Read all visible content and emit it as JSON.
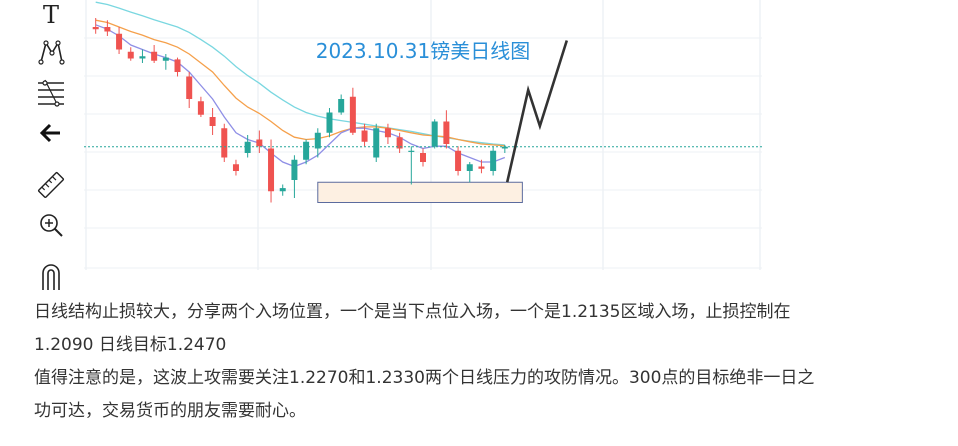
{
  "toolbar": {
    "items": [
      {
        "name": "text-tool",
        "icon": "text-icon",
        "glyph": "T"
      },
      {
        "name": "pattern-tool",
        "icon": "pattern-icon"
      },
      {
        "name": "fib-tool",
        "icon": "fib-retracement-icon"
      },
      {
        "name": "back-tool",
        "icon": "arrow-left-icon"
      },
      {
        "name": "ruler-tool",
        "icon": "ruler-icon"
      },
      {
        "name": "zoom-tool",
        "icon": "zoom-in-icon"
      },
      {
        "name": "magnet-tool",
        "icon": "magnet-icon"
      }
    ]
  },
  "chart_data": {
    "type": "candlestick",
    "title": "2023.10.31镑美日线图",
    "colors": {
      "up": "#26a69a",
      "down": "#ef5350",
      "ma_fast": "#8f8fe6",
      "ma_mid": "#f5a04b",
      "ma_slow": "#7ad7e0",
      "current_line": "#26a69a",
      "zone_fill": "#fdf0e2",
      "zone_border": "#5b6b9e",
      "projection": "#333333",
      "title": "#2a8fd8"
    },
    "candles": [
      {
        "o": 1.244,
        "h": 1.246,
        "l": 1.2425,
        "c": 1.2435
      },
      {
        "o": 1.244,
        "h": 1.2455,
        "l": 1.242,
        "c": 1.243
      },
      {
        "o": 1.2425,
        "h": 1.244,
        "l": 1.238,
        "c": 1.239
      },
      {
        "o": 1.2385,
        "h": 1.2395,
        "l": 1.2365,
        "c": 1.237
      },
      {
        "o": 1.237,
        "h": 1.239,
        "l": 1.236,
        "c": 1.2375
      },
      {
        "o": 1.2385,
        "h": 1.24,
        "l": 1.236,
        "c": 1.2365
      },
      {
        "o": 1.2365,
        "h": 1.238,
        "l": 1.2345,
        "c": 1.2372
      },
      {
        "o": 1.2368,
        "h": 1.2372,
        "l": 1.233,
        "c": 1.234
      },
      {
        "o": 1.233,
        "h": 1.234,
        "l": 1.226,
        "c": 1.228
      },
      {
        "o": 1.2275,
        "h": 1.2285,
        "l": 1.224,
        "c": 1.2245
      },
      {
        "o": 1.224,
        "h": 1.226,
        "l": 1.22,
        "c": 1.222
      },
      {
        "o": 1.2215,
        "h": 1.2225,
        "l": 1.214,
        "c": 1.215
      },
      {
        "o": 1.2135,
        "h": 1.2145,
        "l": 1.211,
        "c": 1.212
      },
      {
        "o": 1.216,
        "h": 1.22,
        "l": 1.215,
        "c": 1.2185
      },
      {
        "o": 1.219,
        "h": 1.221,
        "l": 1.216,
        "c": 1.2175
      },
      {
        "o": 1.217,
        "h": 1.219,
        "l": 1.205,
        "c": 1.2075
      },
      {
        "o": 1.2075,
        "h": 1.209,
        "l": 1.2065,
        "c": 1.2082
      },
      {
        "o": 1.21,
        "h": 1.2155,
        "l": 1.206,
        "c": 1.2145
      },
      {
        "o": 1.2145,
        "h": 1.219,
        "l": 1.2135,
        "c": 1.2185
      },
      {
        "o": 1.217,
        "h": 1.2215,
        "l": 1.215,
        "c": 1.2205
      },
      {
        "o": 1.2205,
        "h": 1.226,
        "l": 1.2195,
        "c": 1.225
      },
      {
        "o": 1.225,
        "h": 1.229,
        "l": 1.2245,
        "c": 1.228
      },
      {
        "o": 1.2285,
        "h": 1.2305,
        "l": 1.22,
        "c": 1.2205
      },
      {
        "o": 1.221,
        "h": 1.2225,
        "l": 1.2175,
        "c": 1.2185
      },
      {
        "o": 1.215,
        "h": 1.2225,
        "l": 1.214,
        "c": 1.2215
      },
      {
        "o": 1.2215,
        "h": 1.2225,
        "l": 1.218,
        "c": 1.2195
      },
      {
        "o": 1.2195,
        "h": 1.2205,
        "l": 1.216,
        "c": 1.217
      },
      {
        "o": 1.2165,
        "h": 1.2175,
        "l": 1.209,
        "c": 1.2165
      },
      {
        "o": 1.216,
        "h": 1.217,
        "l": 1.213,
        "c": 1.214
      },
      {
        "o": 1.2175,
        "h": 1.2235,
        "l": 1.217,
        "c": 1.223
      },
      {
        "o": 1.223,
        "h": 1.2255,
        "l": 1.217,
        "c": 1.218
      },
      {
        "o": 1.2165,
        "h": 1.2175,
        "l": 1.211,
        "c": 1.212
      },
      {
        "o": 1.212,
        "h": 1.214,
        "l": 1.2095,
        "c": 1.2135
      },
      {
        "o": 1.213,
        "h": 1.2145,
        "l": 1.2115,
        "c": 1.2125
      },
      {
        "o": 1.212,
        "h": 1.2175,
        "l": 1.211,
        "c": 1.2165
      },
      {
        "o": 1.217,
        "h": 1.2178,
        "l": 1.216,
        "c": 1.2174
      }
    ],
    "ma_fast": [
      1.2445,
      1.2435,
      1.242,
      1.24,
      1.239,
      1.238,
      1.2372,
      1.2362,
      1.234,
      1.231,
      1.228,
      1.224,
      1.2205,
      1.219,
      1.2182,
      1.216,
      1.214,
      1.213,
      1.214,
      1.2155,
      1.218,
      1.2205,
      1.2215,
      1.2215,
      1.221,
      1.2205,
      1.2195,
      1.218,
      1.217,
      1.2175,
      1.2175,
      1.216,
      1.215,
      1.214,
      1.214,
      1.215
    ],
    "ma_mid": [
      1.2455,
      1.245,
      1.244,
      1.243,
      1.2422,
      1.2412,
      1.2405,
      1.2395,
      1.238,
      1.236,
      1.234,
      1.231,
      1.2282,
      1.2262,
      1.2248,
      1.223,
      1.221,
      1.2195,
      1.219,
      1.2192,
      1.2198,
      1.2208,
      1.2215,
      1.2218,
      1.2218,
      1.2215,
      1.221,
      1.2205,
      1.22,
      1.2198,
      1.2196,
      1.219,
      1.2185,
      1.218,
      1.2178,
      1.2176
    ],
    "ma_slow": [
      1.2495,
      1.249,
      1.2482,
      1.2473,
      1.2465,
      1.2456,
      1.2448,
      1.244,
      1.2428,
      1.2412,
      1.2395,
      1.2375,
      1.2352,
      1.2332,
      1.2315,
      1.2295,
      1.2278,
      1.2262,
      1.225,
      1.2242,
      1.2236,
      1.2232,
      1.2228,
      1.2224,
      1.222,
      1.2216,
      1.2212,
      1.2208,
      1.2203,
      1.2198,
      1.2194,
      1.219,
      1.2186,
      1.2183,
      1.218,
      1.2178
    ],
    "current_price": 1.2174,
    "zone": {
      "from_bar": 19,
      "to_bar": 36.5,
      "top": 1.2095,
      "bottom": 1.205
    },
    "projection": [
      [
        35.2,
        1.2095
      ],
      [
        37,
        1.23
      ],
      [
        38,
        1.222
      ],
      [
        40.3,
        1.241
      ]
    ],
    "ylim": [
      1.19,
      1.25
    ],
    "xlim": [
      -1,
      57
    ],
    "grid": true
  },
  "commentary": {
    "line1": "日线结构止损较大，分享两个入场位置，一个是当下点位入场，一个是1.2135区域入场，止损控制在",
    "line2": "1.2090 日线目标1.2470",
    "line3": "值得注意的是，这波上攻需要关注1.2270和1.2330两个日线压力的攻防情况。300点的目标绝非一日之",
    "line4": "功可达，交易货币的朋友需要耐心。"
  }
}
